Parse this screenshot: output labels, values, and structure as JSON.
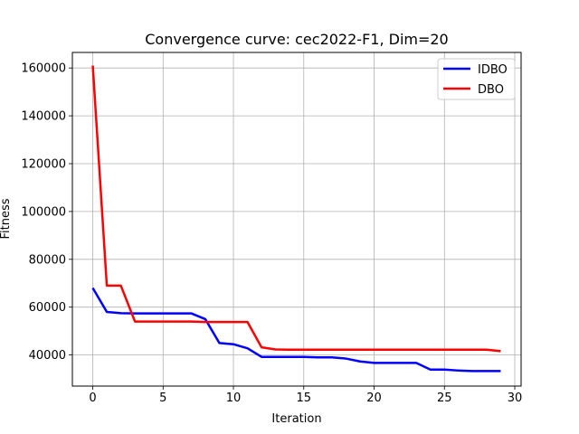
{
  "chart_data": {
    "type": "line",
    "title": "Convergence curve:  cec2022-F1, Dim=20",
    "xlabel": "Iteration",
    "ylabel": "Fitness",
    "xlim": [
      -1.45,
      30.45
    ],
    "ylim": [
      27000,
      166500
    ],
    "xticks": [
      0,
      5,
      10,
      15,
      20,
      25,
      30
    ],
    "yticks": [
      40000,
      60000,
      80000,
      100000,
      120000,
      140000,
      160000
    ],
    "grid": true,
    "legend_position": "top-right",
    "x": [
      0,
      1,
      2,
      3,
      4,
      5,
      6,
      7,
      8,
      9,
      10,
      11,
      12,
      13,
      14,
      15,
      16,
      17,
      18,
      19,
      20,
      21,
      22,
      23,
      24,
      25,
      26,
      27,
      28,
      29
    ],
    "series": [
      {
        "name": "IDBO",
        "color": "#0000ff",
        "values": [
          68000,
          58000,
          57500,
          57400,
          57400,
          57400,
          57400,
          57400,
          55000,
          45000,
          44500,
          42800,
          39200,
          39200,
          39200,
          39200,
          39000,
          39000,
          38500,
          37300,
          36700,
          36700,
          36700,
          36700,
          33900,
          33900,
          33500,
          33300,
          33300,
          33300
        ]
      },
      {
        "name": "DBO",
        "color": "#ff0000",
        "values": [
          161000,
          69000,
          69000,
          54000,
          54000,
          54000,
          54000,
          54000,
          53800,
          53800,
          53800,
          53800,
          43200,
          42300,
          42200,
          42200,
          42200,
          42200,
          42200,
          42200,
          42200,
          42200,
          42200,
          42200,
          42200,
          42200,
          42200,
          42200,
          42200,
          41600
        ]
      }
    ]
  }
}
